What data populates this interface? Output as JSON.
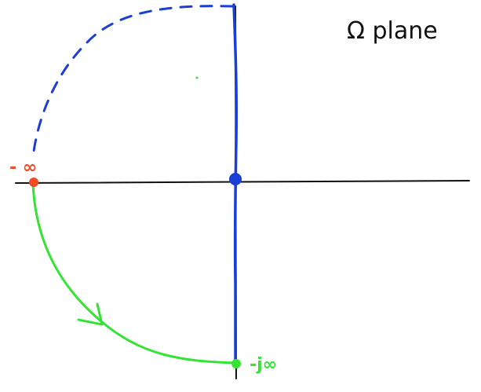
{
  "diagram": {
    "title": "Ω plane",
    "labels": {
      "neg_infinity": "- ∞",
      "neg_j_infinity": "-j∞"
    },
    "colors": {
      "axes": "#111111",
      "imaginary_axis_path": "#1a3fd6",
      "dashed_arc": "#1a3fd6",
      "return_arc": "#35e335",
      "neg_infinity_point": "#f24a22",
      "neg_j_infinity_point": "#35e335",
      "origin_point": "#1a3fd6",
      "neg_infinity_label": "#f24a22",
      "neg_j_infinity_label": "#35e335"
    },
    "icons": {
      "direction_arrow": "arrow-head-icon"
    }
  }
}
